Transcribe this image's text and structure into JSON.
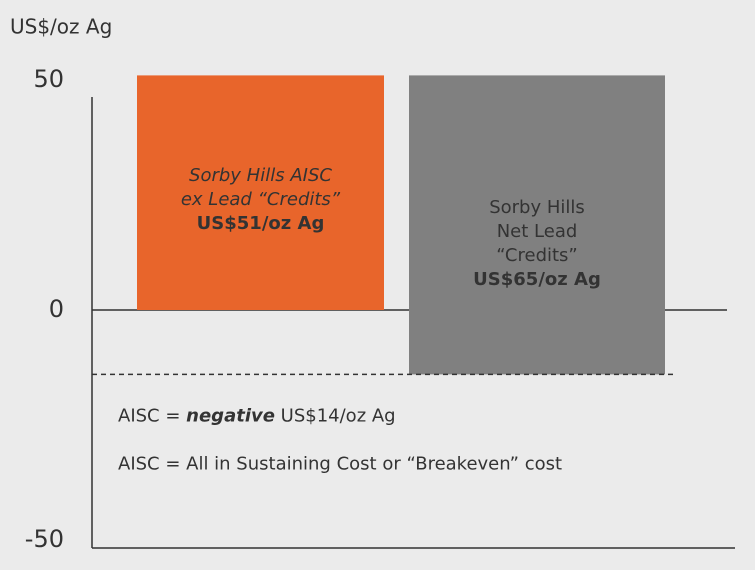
{
  "chart_data": {
    "type": "waterfall",
    "y_axis_label": "US$/oz Ag",
    "categories": [
      null,
      null
    ],
    "values": [
      51,
      -65
    ],
    "colors": [
      "#e8652b",
      "#808080"
    ],
    "bar_labels": [
      {
        "lines": [
          "Sorby Hills AISC",
          "ex Lead “Credits”"
        ],
        "value_text": "US$51/oz Ag"
      },
      {
        "lines": [
          "Sorby Hills",
          "Net Lead",
          "“Credits”"
        ],
        "value_text": "US$65/oz Ag"
      }
    ],
    "net": -14,
    "net_label": [
      "AISC = ",
      "negative",
      " US$14/oz Ag"
    ],
    "note": "AISC = All in Sustaining Cost or “Breakeven” cost",
    "ylim": [
      -50,
      50
    ],
    "yticks": [
      50,
      0,
      -50
    ]
  }
}
